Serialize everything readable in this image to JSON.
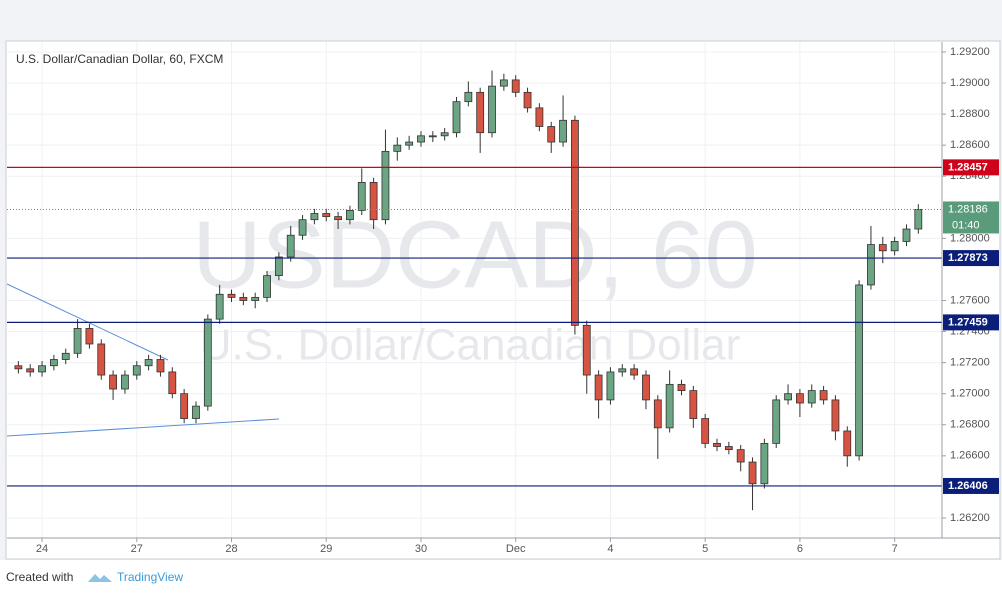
{
  "chart_data": {
    "type": "candlestick",
    "title": "U.S. Dollar/Canadian Dollar, 60, FXCM",
    "watermark": [
      "USDCAD, 60",
      "U.S. Dollar/Canadian Dollar"
    ],
    "x": [
      -0.25,
      -0.125,
      0,
      0.125,
      0.25,
      0.375,
      0.5,
      0.625,
      0.75,
      0.875,
      1,
      1.125,
      1.25,
      1.375,
      1.5,
      1.625,
      1.75,
      1.875,
      2,
      2.125,
      2.25,
      2.375,
      2.5,
      2.625,
      2.75,
      2.875,
      3,
      3.125,
      3.25,
      3.375,
      3.5,
      3.625,
      3.75,
      3.875,
      4,
      4.125,
      4.25,
      4.375,
      4.5,
      4.625,
      4.75,
      4.875,
      5,
      5.125,
      5.25,
      5.375,
      5.5,
      5.625,
      5.75,
      5.875,
      6,
      6.125,
      6.25,
      6.375,
      6.5,
      6.625,
      6.75,
      6.875,
      7,
      7.125,
      7.25,
      7.375,
      7.5,
      7.625,
      7.75,
      7.875,
      8,
      8.125,
      8.25,
      8.375,
      8.5,
      8.625,
      8.75,
      8.875,
      9,
      9.125,
      9.25
    ],
    "open": [
      1.2718,
      1.2716,
      1.2714,
      1.2718,
      1.2722,
      1.2726,
      1.2742,
      1.2732,
      1.2712,
      1.2703,
      1.2712,
      1.2718,
      1.2722,
      1.2714,
      1.27,
      1.2684,
      1.2692,
      1.2748,
      1.2764,
      1.2762,
      1.276,
      1.2762,
      1.2776,
      1.2788,
      1.2802,
      1.2812,
      1.2816,
      1.2814,
      1.2812,
      1.2818,
      1.2836,
      1.2812,
      1.2856,
      1.286,
      1.2862,
      1.2866,
      1.2866,
      1.2868,
      1.2888,
      1.2894,
      1.2868,
      1.2898,
      1.2902,
      1.2894,
      1.2884,
      1.2872,
      1.2862,
      1.2876,
      1.2744,
      1.2712,
      1.2696,
      1.2714,
      1.2716,
      1.2712,
      1.2696,
      1.2678,
      1.2706,
      1.2702,
      1.2684,
      1.2668,
      1.2666,
      1.2664,
      1.2656,
      1.2642,
      1.2668,
      1.2696,
      1.27,
      1.2694,
      1.2702,
      1.2696,
      1.2676,
      1.266,
      1.277,
      1.2796,
      1.2792,
      1.2798,
      1.2806
    ],
    "high": [
      1.2721,
      1.2719,
      1.2721,
      1.2725,
      1.2729,
      1.2748,
      1.2745,
      1.2735,
      1.2715,
      1.2715,
      1.2721,
      1.2725,
      1.2725,
      1.2717,
      1.2703,
      1.2695,
      1.2751,
      1.277,
      1.2767,
      1.2765,
      1.2765,
      1.2779,
      1.2791,
      1.2808,
      1.2815,
      1.2819,
      1.2819,
      1.2817,
      1.2821,
      1.2845,
      1.2839,
      1.287,
      1.2865,
      1.2866,
      1.2869,
      1.2869,
      1.2871,
      1.2891,
      1.2901,
      1.2897,
      1.2908,
      1.2906,
      1.2905,
      1.2897,
      1.2887,
      1.2875,
      1.2892,
      1.2879,
      1.2747,
      1.2715,
      1.2717,
      1.2719,
      1.2719,
      1.2715,
      1.2699,
      1.2715,
      1.2709,
      1.2705,
      1.2687,
      1.2671,
      1.2669,
      1.2667,
      1.2659,
      1.2671,
      1.2699,
      1.2706,
      1.2703,
      1.2706,
      1.2705,
      1.2699,
      1.2679,
      1.2773,
      1.2808,
      1.2801,
      1.2801,
      1.2809,
      1.2822
    ],
    "low": [
      1.2713,
      1.2711,
      1.2711,
      1.2715,
      1.2719,
      1.2723,
      1.2729,
      1.2709,
      1.2696,
      1.27,
      1.2709,
      1.2715,
      1.2711,
      1.2697,
      1.2681,
      1.2681,
      1.2689,
      1.2745,
      1.2759,
      1.2757,
      1.2755,
      1.2759,
      1.2773,
      1.2785,
      1.2799,
      1.2809,
      1.2811,
      1.2806,
      1.2809,
      1.2815,
      1.2806,
      1.2809,
      1.285,
      1.2857,
      1.2859,
      1.2862,
      1.2863,
      1.2865,
      1.2885,
      1.2855,
      1.2865,
      1.2895,
      1.2891,
      1.2881,
      1.2869,
      1.2855,
      1.2859,
      1.2738,
      1.27,
      1.2684,
      1.2693,
      1.2711,
      1.2709,
      1.269,
      1.2658,
      1.2675,
      1.2699,
      1.2678,
      1.2665,
      1.2663,
      1.2661,
      1.265,
      1.2625,
      1.2639,
      1.2665,
      1.2693,
      1.2685,
      1.2691,
      1.2693,
      1.267,
      1.2653,
      1.2657,
      1.2767,
      1.2784,
      1.2789,
      1.2795,
      1.2803
    ],
    "close": [
      1.2716,
      1.2714,
      1.2718,
      1.2722,
      1.2726,
      1.2742,
      1.2732,
      1.2712,
      1.2703,
      1.2712,
      1.2718,
      1.2722,
      1.2714,
      1.27,
      1.2684,
      1.2692,
      1.2748,
      1.2764,
      1.2762,
      1.276,
      1.2762,
      1.2776,
      1.2788,
      1.2802,
      1.2812,
      1.2816,
      1.2814,
      1.2812,
      1.2818,
      1.2836,
      1.2812,
      1.2856,
      1.286,
      1.2862,
      1.2866,
      1.2866,
      1.2868,
      1.2888,
      1.2894,
      1.2868,
      1.2898,
      1.2902,
      1.2894,
      1.2884,
      1.2872,
      1.2862,
      1.2876,
      1.2744,
      1.2712,
      1.2696,
      1.2714,
      1.2716,
      1.2712,
      1.2696,
      1.2678,
      1.2706,
      1.2702,
      1.2684,
      1.2668,
      1.2666,
      1.2664,
      1.2656,
      1.2642,
      1.2668,
      1.2696,
      1.27,
      1.2694,
      1.2702,
      1.2696,
      1.2676,
      1.266,
      1.277,
      1.2796,
      1.2792,
      1.2798,
      1.2806,
      1.28186
    ],
    "up_color": "#6ba583",
    "down_color": "#d75442",
    "xlim": [
      -0.37,
      9.5
    ],
    "xticks": [
      {
        "value": 0,
        "label": "24"
      },
      {
        "value": 1,
        "label": "27"
      },
      {
        "value": 2,
        "label": "28"
      },
      {
        "value": 3,
        "label": "29"
      },
      {
        "value": 4,
        "label": "30"
      },
      {
        "value": 5,
        "label": "Dec"
      },
      {
        "value": 6,
        "label": "4"
      },
      {
        "value": 7,
        "label": "5"
      },
      {
        "value": 8,
        "label": "6"
      },
      {
        "value": 9,
        "label": "7"
      }
    ],
    "ylim": [
      1.26071,
      1.29264
    ],
    "yticks": [
      {
        "value": 1.292,
        "label": "1.29200"
      },
      {
        "value": 1.29,
        "label": "1.29000"
      },
      {
        "value": 1.288,
        "label": "1.28800"
      },
      {
        "value": 1.286,
        "label": "1.28600"
      },
      {
        "value": 1.284,
        "label": "1.28400"
      },
      {
        "value": 1.28,
        "label": "1.28000"
      },
      {
        "value": 1.276,
        "label": "1.27600"
      },
      {
        "value": 1.274,
        "label": "1.27400"
      },
      {
        "value": 1.272,
        "label": "1.27200"
      },
      {
        "value": 1.27,
        "label": "1.27000"
      },
      {
        "value": 1.268,
        "label": "1.26800"
      },
      {
        "value": 1.266,
        "label": "1.26600"
      },
      {
        "value": 1.262,
        "label": "1.26200"
      }
    ],
    "grid": true,
    "levels": [
      {
        "value": 1.28457,
        "color": "#d0021b"
      },
      {
        "value": 1.27873,
        "color": "#0b1f7a"
      },
      {
        "value": 1.27459,
        "color": "#0b1f7a"
      },
      {
        "value": 1.26406,
        "color": "#0b1f7a"
      }
    ],
    "last_price_color": "#5a9b7b",
    "countdown": "01:40"
  },
  "footer": {
    "created": "Created with",
    "brand": "TradingView"
  }
}
